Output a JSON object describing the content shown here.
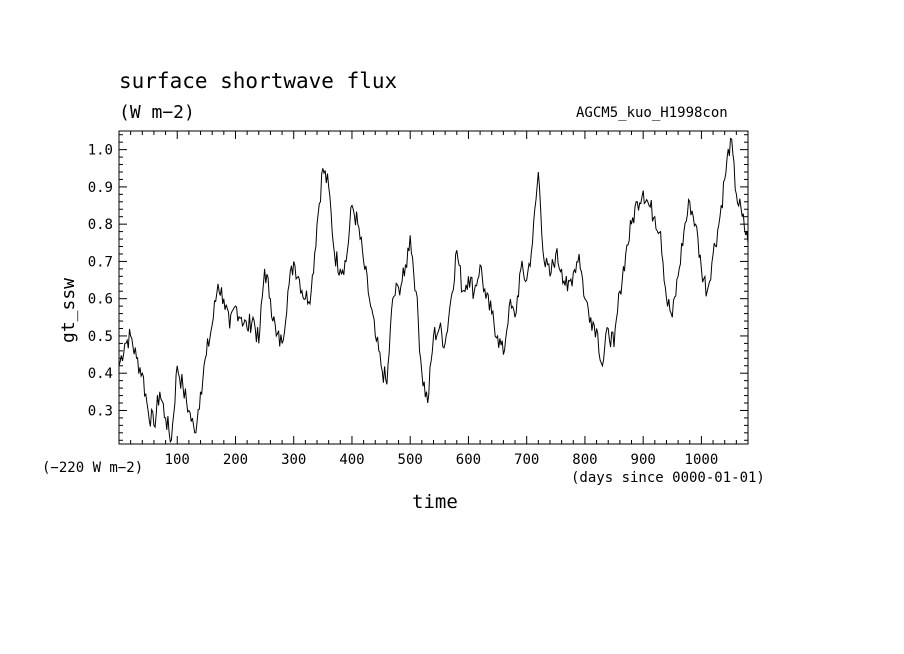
{
  "chart_data": {
    "type": "line",
    "title": "surface shortwave flux",
    "subtitle": "(W m−2)",
    "experiment": "AGCM5_kuo_H1998con",
    "xlabel": "time",
    "ylabel": "gt_ssw",
    "offset_note": "(−220 W m−2)",
    "x_units_note": "(days since 0000-01-01)",
    "xlim": [
      0,
      1080
    ],
    "ylim": [
      0.21,
      1.05
    ],
    "x_ticks": [
      100,
      200,
      300,
      400,
      500,
      600,
      700,
      800,
      900,
      1000
    ],
    "y_ticks": [
      0.3,
      0.4,
      0.5,
      0.6,
      0.7,
      0.8,
      0.9,
      1.0
    ],
    "y_tick_labels": [
      "0.3",
      "0.4",
      "0.5",
      "0.6",
      "0.7",
      "0.8",
      "0.9",
      "1.0"
    ],
    "grid": false,
    "series": [
      {
        "x": [
          0,
          10,
          20,
          30,
          40,
          50,
          60,
          70,
          80,
          90,
          100,
          110,
          120,
          130,
          140,
          150,
          160,
          170,
          180,
          190,
          200,
          210,
          220,
          230,
          240,
          250,
          260,
          270,
          280,
          290,
          300,
          310,
          320,
          330,
          340,
          350,
          360,
          370,
          380,
          390,
          400,
          410,
          420,
          430,
          440,
          450,
          460,
          470,
          480,
          490,
          500,
          510,
          520,
          530,
          540,
          550,
          560,
          570,
          580,
          590,
          600,
          610,
          620,
          630,
          640,
          650,
          660,
          670,
          680,
          690,
          700,
          710,
          720,
          730,
          740,
          750,
          760,
          770,
          780,
          790,
          800,
          810,
          820,
          830,
          840,
          850,
          860,
          870,
          880,
          890,
          900,
          910,
          920,
          930,
          940,
          950,
          960,
          970,
          980,
          990,
          1000,
          1010,
          1020,
          1030,
          1040,
          1050,
          1060,
          1070,
          1080
        ],
        "y": [
          0.42,
          0.48,
          0.5,
          0.44,
          0.4,
          0.3,
          0.26,
          0.35,
          0.28,
          0.22,
          0.42,
          0.36,
          0.3,
          0.24,
          0.35,
          0.45,
          0.53,
          0.64,
          0.6,
          0.52,
          0.58,
          0.55,
          0.52,
          0.55,
          0.48,
          0.68,
          0.6,
          0.5,
          0.48,
          0.62,
          0.7,
          0.65,
          0.6,
          0.62,
          0.8,
          0.95,
          0.9,
          0.72,
          0.68,
          0.7,
          0.85,
          0.8,
          0.7,
          0.6,
          0.5,
          0.42,
          0.37,
          0.6,
          0.63,
          0.66,
          0.77,
          0.62,
          0.4,
          0.32,
          0.5,
          0.52,
          0.48,
          0.6,
          0.73,
          0.62,
          0.66,
          0.62,
          0.69,
          0.6,
          0.56,
          0.5,
          0.45,
          0.58,
          0.55,
          0.68,
          0.65,
          0.75,
          0.94,
          0.7,
          0.66,
          0.72,
          0.68,
          0.62,
          0.67,
          0.72,
          0.6,
          0.55,
          0.52,
          0.42,
          0.52,
          0.47,
          0.62,
          0.72,
          0.8,
          0.86,
          0.89,
          0.85,
          0.82,
          0.78,
          0.6,
          0.55,
          0.66,
          0.78,
          0.86,
          0.8,
          0.68,
          0.62,
          0.72,
          0.8,
          0.92,
          1.03,
          0.88,
          0.82,
          0.75
        ]
      }
    ]
  }
}
